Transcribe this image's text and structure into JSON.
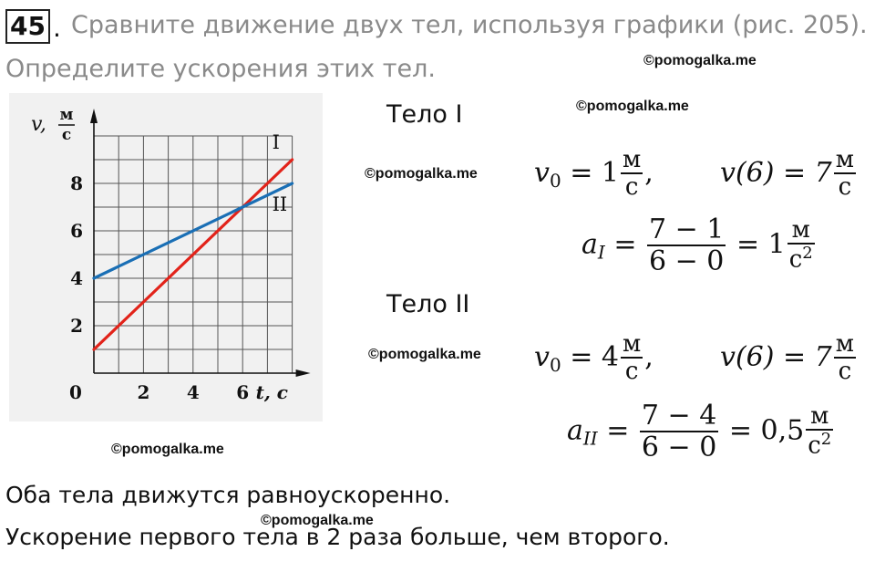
{
  "task": {
    "number": "45",
    "dot": ".",
    "line1": "Сравните   движение двух тел, используя графики (рис. 205).",
    "line2": "Определите ускорения этих тел."
  },
  "watermark": "©pomogalka.me",
  "body1": {
    "heading": "Тело I",
    "v0_lhs": "v",
    "v0_sub": "0",
    "v0_eq": " = 1",
    "v0_unit_num": "м",
    "v0_unit_den": "с",
    "comma": ",",
    "v6_lhs": "v(6) = 7",
    "v6_unit_num": "м",
    "v6_unit_den": "с",
    "a_lhs": "a",
    "a_sub": "I",
    "eq": " = ",
    "frac_num": "7 − 1",
    "frac_den": "6 − 0",
    "result": " = 1",
    "res_unit_num": "м",
    "res_unit_den": "с",
    "res_unit_sup": "2"
  },
  "body2": {
    "heading": "Тело II",
    "v0_lhs": "v",
    "v0_sub": "0",
    "v0_eq": " = 4",
    "v0_unit_num": "м",
    "v0_unit_den": "с",
    "comma": ",",
    "v6_lhs": "v(6) = 7",
    "v6_unit_num": "м",
    "v6_unit_den": "с",
    "a_lhs": "a",
    "a_sub": "II",
    "eq": " = ",
    "frac_num": "7 − 4",
    "frac_den": "6 − 0",
    "result": " = 0,5",
    "res_unit_num": "м",
    "res_unit_den": "с",
    "res_unit_sup": "2"
  },
  "conclusion": {
    "line1": "Оба тела движутся равноускоренно.",
    "line2": "Ускорение первого тела в 2 раза больше, чем второго."
  },
  "chart_data": {
    "type": "line",
    "ylabel_var": "v,",
    "ylabel_unit_num": "м",
    "ylabel_unit_den": "с",
    "xlabel": "t, с",
    "origin_label": "0",
    "xlim": [
      0,
      8
    ],
    "ylim": [
      0,
      10
    ],
    "x_ticks": [
      "2",
      "4",
      "6"
    ],
    "y_ticks": [
      "2",
      "4",
      "6",
      "8"
    ],
    "grid": true,
    "series": [
      {
        "name": "I",
        "color": "#e2231a",
        "x": [
          0,
          8
        ],
        "y": [
          1,
          9
        ]
      },
      {
        "name": "II",
        "color": "#1a6fb5",
        "x": [
          0,
          8
        ],
        "y": [
          4,
          8
        ]
      }
    ]
  }
}
